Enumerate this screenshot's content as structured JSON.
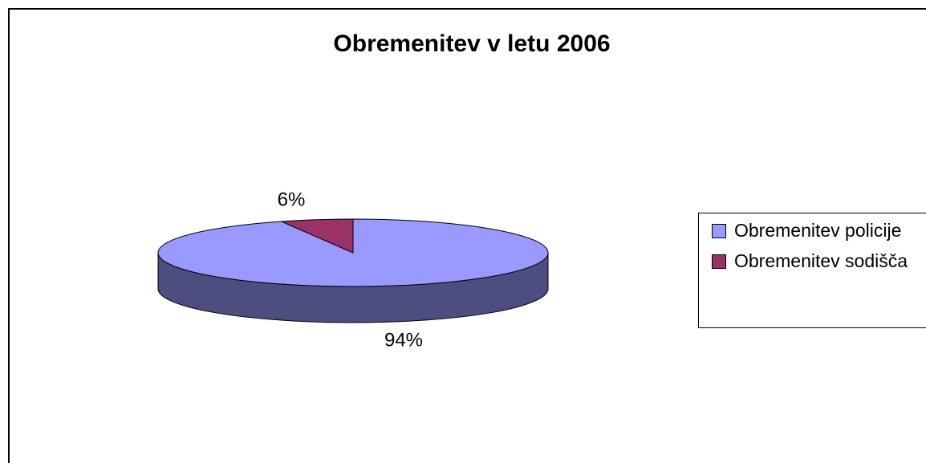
{
  "chart_data": {
    "type": "pie",
    "title": "Obremenitev v letu 2006",
    "categories": [
      "Obremenitev policije",
      "Obremenitev sodišča"
    ],
    "values": [
      94,
      6
    ],
    "value_labels": [
      "94%",
      "6%"
    ],
    "colors": [
      "#9999ff",
      "#993366"
    ],
    "legend": "right"
  }
}
